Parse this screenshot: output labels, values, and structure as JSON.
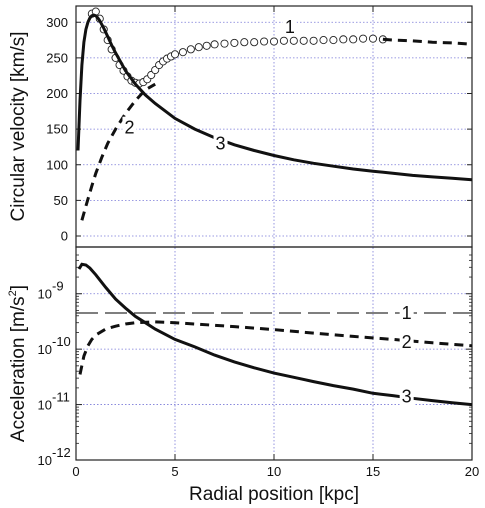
{
  "chart_data": [
    {
      "type": "line",
      "panel": "top",
      "ylabel": "Circular velocity [km/s]",
      "ylim": [
        0,
        320
      ],
      "yticks": [
        0,
        50,
        100,
        150,
        200,
        250,
        300
      ],
      "xlim": [
        0,
        20
      ],
      "series": [
        {
          "name": "1",
          "style": "open-circles",
          "x": [
            0.8,
            1.0,
            1.2,
            1.4,
            1.6,
            1.8,
            2.0,
            2.2,
            2.4,
            2.6,
            2.8,
            3.0,
            3.2,
            3.4,
            3.6,
            3.8,
            4.0,
            4.2,
            4.4,
            4.6,
            4.8,
            5.0,
            5.4,
            5.8,
            6.2,
            6.6,
            7.0,
            7.5,
            8.0,
            8.5,
            9.0,
            9.5,
            10.0,
            10.5,
            11.0,
            11.5,
            12.0,
            12.5,
            13.0,
            13.5,
            14.0,
            14.5,
            15.0,
            15.5
          ],
          "y": [
            312,
            315,
            305,
            290,
            275,
            262,
            250,
            240,
            232,
            224,
            218,
            215,
            214,
            216,
            220,
            226,
            233,
            240,
            245,
            249,
            252,
            255,
            258,
            262,
            265,
            267,
            269,
            270,
            271,
            272,
            272,
            273,
            273,
            274,
            274,
            274,
            274,
            275,
            275,
            276,
            276,
            277,
            277,
            276
          ]
        },
        {
          "name": "1",
          "style": "dashed-thick",
          "x": [
            15.5,
            16,
            17,
            18,
            19,
            20
          ],
          "y": [
            276,
            275,
            274,
            272,
            271,
            269
          ]
        },
        {
          "name": "2",
          "style": "dashed-thick",
          "x": [
            0.3,
            0.5,
            0.8,
            1.0,
            1.3,
            1.6,
            2.0,
            2.5,
            3.0,
            3.5,
            4.0
          ],
          "y": [
            22,
            42,
            70,
            88,
            110,
            130,
            150,
            172,
            190,
            205,
            213
          ]
        },
        {
          "name": "3",
          "style": "solid-thick",
          "x": [
            0.1,
            0.2,
            0.3,
            0.4,
            0.5,
            0.6,
            0.7,
            0.8,
            0.9,
            1.0,
            1.1,
            1.2,
            1.4,
            1.6,
            1.8,
            2.0,
            2.5,
            3.0,
            3.5,
            4.0,
            5,
            6,
            7,
            8,
            9,
            10,
            11,
            12,
            13,
            14,
            15,
            16,
            17,
            18,
            19,
            20
          ],
          "y": [
            120,
            190,
            240,
            272,
            290,
            300,
            306,
            309,
            310,
            309,
            306,
            302,
            292,
            280,
            268,
            257,
            232,
            213,
            198,
            186,
            165,
            150,
            138,
            128,
            120,
            113,
            107,
            102,
            98,
            94,
            91,
            88,
            85,
            83,
            81,
            79
          ]
        }
      ],
      "labels": [
        {
          "text": "1",
          "x": 10.8,
          "y": 293
        },
        {
          "text": "2",
          "x": 2.7,
          "y": 152
        },
        {
          "text": "3",
          "x": 7.3,
          "y": 130
        }
      ]
    },
    {
      "type": "line",
      "panel": "bottom",
      "log_y": true,
      "ylabel": "Acceleration [m/s",
      "ylabel_sup": "2",
      "ylabel_end": "]",
      "ylim": [
        1e-12,
        5e-09
      ],
      "yticks": [
        {
          "base": "10",
          "exp": "-12",
          "value": 1e-12
        },
        {
          "base": "10",
          "exp": "-11",
          "value": 1e-11
        },
        {
          "base": "10",
          "exp": "-10",
          "value": 1e-10
        },
        {
          "base": "10",
          "exp": "-9",
          "value": 1e-09
        }
      ],
      "xlabel": "Radial position [kpc]",
      "xlim": [
        0,
        20
      ],
      "xticks": [
        0,
        5,
        10,
        15,
        20
      ],
      "series": [
        {
          "name": "1",
          "style": "dashed-long",
          "x": [
            0,
            20
          ],
          "y": [
            4.5e-10,
            4.5e-10
          ]
        },
        {
          "name": "2",
          "style": "dashed-thick",
          "x": [
            0.2,
            0.4,
            0.6,
            0.8,
            1.0,
            1.5,
            2.0,
            2.5,
            3.0,
            4.0,
            5.0,
            6,
            8,
            10,
            12,
            14,
            16,
            18,
            20
          ],
          "y": [
            3.5e-11,
            7.5e-11,
            1.15e-10,
            1.5e-10,
            1.8e-10,
            2.3e-10,
            2.6e-10,
            2.85e-10,
            3e-10,
            3.1e-10,
            3e-10,
            2.85e-10,
            2.55e-10,
            2.25e-10,
            1.95e-10,
            1.7e-10,
            1.5e-10,
            1.3e-10,
            1.15e-10
          ]
        },
        {
          "name": "3",
          "style": "solid-thick",
          "x": [
            0.15,
            0.3,
            0.5,
            0.7,
            1.0,
            1.5,
            2.0,
            2.5,
            3.0,
            3.5,
            4.0,
            5,
            6,
            7,
            8,
            9,
            10,
            11,
            12,
            13,
            14,
            15,
            16,
            17,
            18,
            19,
            20
          ],
          "y": [
            2.8e-09,
            3.4e-09,
            3.3e-09,
            2.9e-09,
            2.2e-09,
            1.3e-09,
            8e-10,
            5.5e-10,
            3.9e-10,
            3e-10,
            2.3e-10,
            1.5e-10,
            1.1e-10,
            7.8e-11,
            5.9e-11,
            4.6e-11,
            3.7e-11,
            3.1e-11,
            2.6e-11,
            2.2e-11,
            1.9e-11,
            1.6e-11,
            1.45e-11,
            1.3e-11,
            1.18e-11,
            1.08e-11,
            1e-11
          ]
        }
      ],
      "labels": [
        {
          "text": "1",
          "x": 16.7,
          "y": 4.5e-10
        },
        {
          "text": "2",
          "x": 16.7,
          "y": 1.35e-10
        },
        {
          "text": "3",
          "x": 16.7,
          "y": 1.4e-11
        }
      ]
    }
  ]
}
